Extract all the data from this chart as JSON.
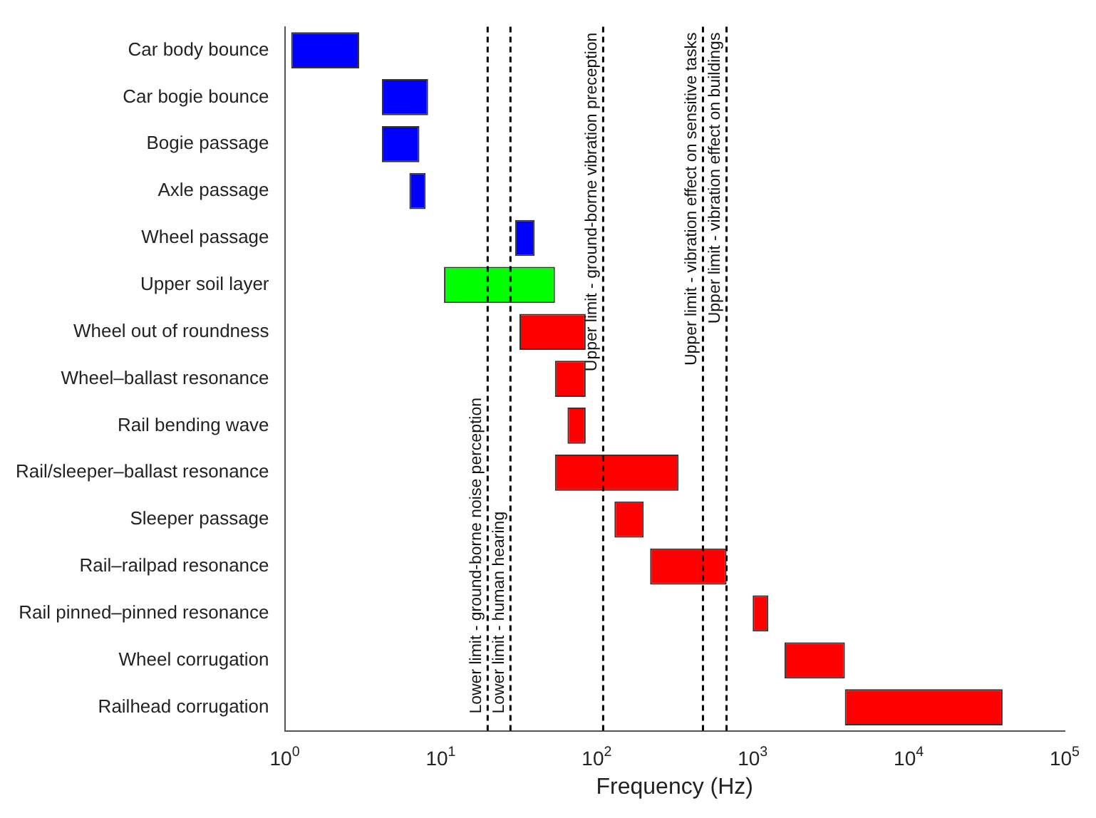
{
  "chart_data": {
    "type": "bar",
    "orientation": "horizontal",
    "log": "x",
    "xlabel": "Frequency (Hz)",
    "categories": [
      "Car body bounce",
      "Car bogie bounce",
      "Bogie passage",
      "Axle passage",
      "Wheel passage",
      "Upper soil layer",
      "Wheel out of roundness",
      "Wheel–ballast resonance",
      "Rail bending wave",
      "Rail/sleeper–ballast resonance",
      "Sleeper passage",
      "Rail–railpad resonance",
      "Rail pinned–pinned resonance",
      "Wheel corrugation",
      "Railhead corrugation"
    ],
    "base": [
      1.1,
      4.2,
      4.2,
      6.3,
      30,
      10.5,
      32,
      54,
      65,
      54,
      130,
      220,
      1000,
      1600,
      3900
    ],
    "values": [
      1.9,
      4.1,
      3.1,
      1.7,
      10,
      43.5,
      53,
      31,
      20,
      281,
      70,
      460,
      260,
      2300,
      36100
    ],
    "colors": [
      "#0000ff",
      "#0000ff",
      "#0000ff",
      "#0000ff",
      "#0000ff",
      "#00ff00",
      "#ff0000",
      "#ff0000",
      "#ff0000",
      "#ff0000",
      "#ff0000",
      "#ff0000",
      "#ff0000",
      "#ff0000",
      "#ff0000"
    ],
    "xlim": [
      1,
      100000
    ],
    "xticks": [
      {
        "value": 1,
        "label": "10$^{0}$"
      },
      {
        "value": 10,
        "label": "10$^{1}$"
      },
      {
        "value": 100,
        "label": "10$^{2}$"
      },
      {
        "value": 1000,
        "label": "10$^{3}$"
      },
      {
        "value": 10000,
        "label": "10$^{4}$"
      },
      {
        "value": 100000,
        "label": "10$^{5}$"
      }
    ],
    "grid": false,
    "legend": false,
    "ref_lines": [
      {
        "axis": "x",
        "value": 20,
        "label": "Lower limit - ground-borne noise perception",
        "color": "#000000",
        "line_style": "dashed"
      },
      {
        "axis": "x",
        "value": 28,
        "label": "Lower limit - human hearing",
        "color": "#000000",
        "line_style": "dashed"
      },
      {
        "axis": "x",
        "value": 110,
        "label": "Upper limit - ground-borne vibration preception",
        "color": "#000000",
        "line_style": "dashed"
      },
      {
        "axis": "x",
        "value": 480,
        "label": "Upper limit - vibration effect on sensitive tasks",
        "color": "#000000",
        "line_style": "dashed"
      },
      {
        "axis": "x",
        "value": 680,
        "label": "Upper limit - vibration effect on buildings",
        "color": "#000000",
        "line_style": "dashed"
      }
    ]
  }
}
